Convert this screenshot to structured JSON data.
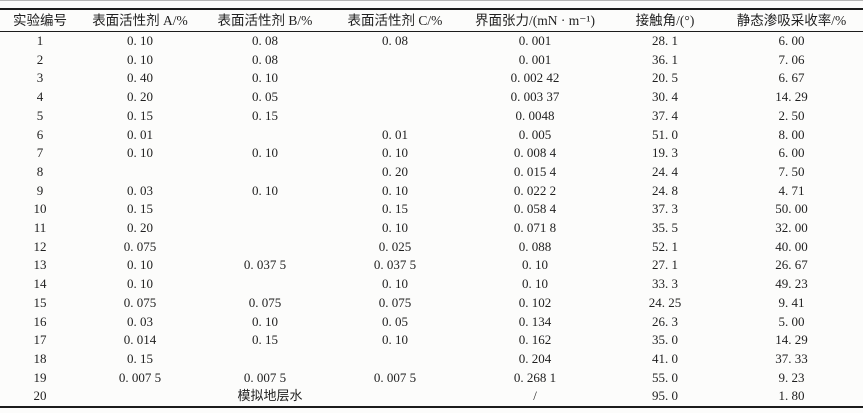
{
  "table": {
    "columns": [
      "实验编号",
      "表面活性剂 A/%",
      "表面活性剂 B/%",
      "表面活性剂 C/%",
      "界面张力/(mN · m⁻¹)",
      "接触角/(°)",
      "静态渗吸采收率/%"
    ],
    "rows": [
      {
        "cells": [
          "1",
          "0. 10",
          "0. 08",
          "0. 08",
          "0. 001",
          "28. 1",
          "6. 00"
        ]
      },
      {
        "cells": [
          "2",
          "0. 10",
          "0. 08",
          "",
          "0. 001",
          "36. 1",
          "7. 06"
        ]
      },
      {
        "cells": [
          "3",
          "0. 40",
          "0. 10",
          "",
          "0. 002 42",
          "20. 5",
          "6. 67"
        ]
      },
      {
        "cells": [
          "4",
          "0. 20",
          "0. 05",
          "",
          "0. 003 37",
          "30. 4",
          "14. 29"
        ]
      },
      {
        "cells": [
          "5",
          "0. 15",
          "0. 15",
          "",
          "0. 0048",
          "37. 4",
          "2. 50"
        ]
      },
      {
        "cells": [
          "6",
          "0. 01",
          "",
          "0. 01",
          "0. 005",
          "51. 0",
          "8. 00"
        ]
      },
      {
        "cells": [
          "7",
          "0. 10",
          "0. 10",
          "0. 10",
          "0. 008 4",
          "19. 3",
          "6. 00"
        ]
      },
      {
        "cells": [
          "8",
          "",
          "",
          "0. 20",
          "0. 015 4",
          "24. 4",
          "7. 50"
        ]
      },
      {
        "cells": [
          "9",
          "0. 03",
          "0. 10",
          "0. 10",
          "0. 022 2",
          "24. 8",
          "4. 71"
        ]
      },
      {
        "cells": [
          "10",
          "0. 15",
          "",
          "0. 15",
          "0. 058 4",
          "37. 3",
          "50. 00"
        ]
      },
      {
        "cells": [
          "11",
          "0. 20",
          "",
          "0. 10",
          "0. 071 8",
          "35. 5",
          "32. 00"
        ]
      },
      {
        "cells": [
          "12",
          "0. 075",
          "",
          "0. 025",
          "0. 088",
          "52. 1",
          "40. 00"
        ]
      },
      {
        "cells": [
          "13",
          "0. 10",
          "0. 037 5",
          "0. 037 5",
          "0. 10",
          "27. 1",
          "26. 67"
        ]
      },
      {
        "cells": [
          "14",
          "0. 10",
          "",
          "0. 10",
          "0. 10",
          "33. 3",
          "49. 23"
        ]
      },
      {
        "cells": [
          "15",
          "0. 075",
          "0. 075",
          "0. 075",
          "0. 102",
          "24. 25",
          "9. 41"
        ]
      },
      {
        "cells": [
          "16",
          "0. 03",
          "0. 10",
          "0. 05",
          "0. 134",
          "26. 3",
          "5. 00"
        ]
      },
      {
        "cells": [
          "17",
          "0. 014",
          "0. 15",
          "0. 10",
          "0. 162",
          "35. 0",
          "14. 29"
        ]
      },
      {
        "cells": [
          "18",
          "0. 15",
          "",
          "",
          "0. 204",
          "41. 0",
          "37. 33"
        ]
      },
      {
        "cells": [
          "19",
          "0. 007 5",
          "0. 007 5",
          "0. 007 5",
          "0. 268 1",
          "55. 0",
          "9. 23"
        ]
      },
      {
        "cells": [
          "20",
          "模拟地层水",
          "/",
          "95. 0",
          "1. 80"
        ],
        "colspans": [
          1,
          3,
          1,
          1,
          1
        ]
      }
    ]
  },
  "colors": {
    "rule": "#1c1c1c",
    "text": "#1f1f1f",
    "background": "#fcfcfb",
    "hairline": "#b5b5b5"
  }
}
